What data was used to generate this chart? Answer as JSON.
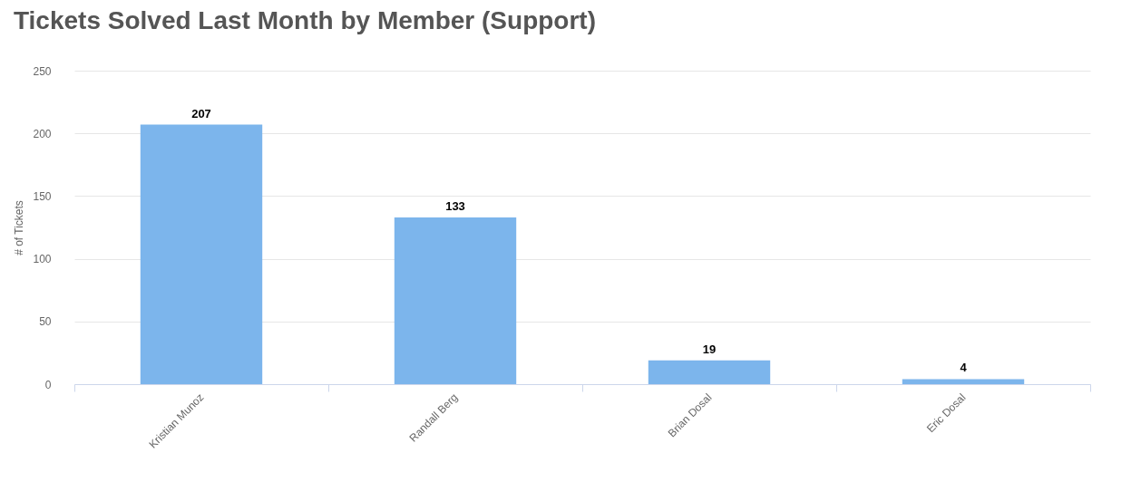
{
  "chart_data": {
    "type": "bar",
    "title": "Tickets Solved Last Month by Member (Support)",
    "ylabel": "# of Tickets",
    "categories": [
      "Kristian Munoz",
      "Randall Berg",
      "Brian Dosal",
      "Eric Dosal"
    ],
    "values": [
      207,
      133,
      19,
      4
    ],
    "color": "#7cb5ec",
    "ylim": [
      0,
      250
    ],
    "yticks": [
      0,
      50,
      100,
      150,
      200,
      250
    ],
    "grid": "y",
    "data_labels": true
  }
}
